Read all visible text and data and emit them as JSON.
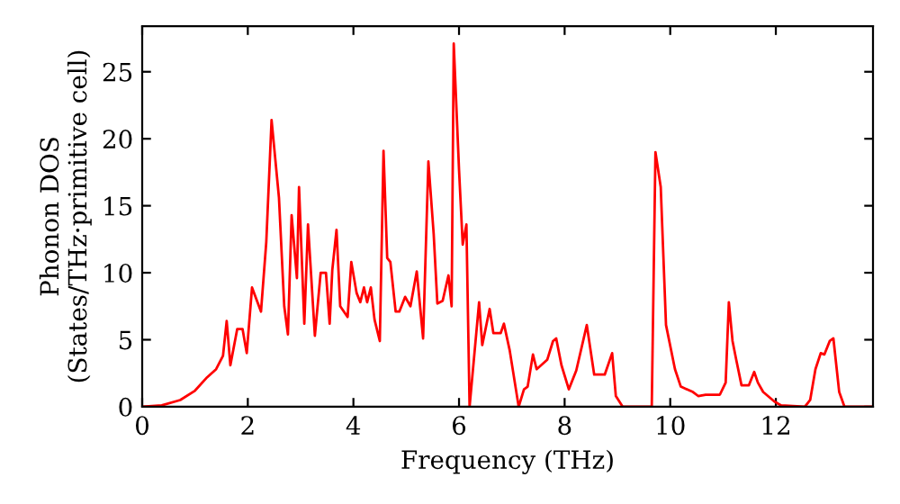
{
  "chart_data": {
    "type": "line",
    "xlabel": "Frequency (THz)",
    "ylabel": "Phonon DOS\n(States/THz·primitive cell)",
    "xlim": [
      0,
      13.84
    ],
    "ylim": [
      0,
      28.4
    ],
    "xticks": [
      0,
      2,
      4,
      6,
      8,
      10,
      12
    ],
    "yticks": [
      0,
      5,
      10,
      15,
      20,
      25
    ],
    "grid": false,
    "marker": "none",
    "line_style": "solid",
    "series": [
      {
        "color": "#ff0000",
        "x": [
          0,
          0.37,
          0.72,
          1.0,
          1.23,
          1.4,
          1.53,
          1.6,
          1.67,
          1.8,
          1.9,
          1.98,
          2.08,
          2.25,
          2.35,
          2.45,
          2.59,
          2.69,
          2.76,
          2.83,
          2.93,
          2.97,
          3.07,
          3.14,
          3.27,
          3.38,
          3.48,
          3.55,
          3.6,
          3.68,
          3.75,
          3.89,
          3.96,
          4.06,
          4.13,
          4.2,
          4.26,
          4.33,
          4.4,
          4.5,
          4.57,
          4.64,
          4.7,
          4.8,
          4.87,
          4.98,
          5.08,
          5.2,
          5.32,
          5.42,
          5.52,
          5.59,
          5.69,
          5.8,
          5.86,
          5.9,
          6.0,
          6.07,
          6.14,
          6.2,
          6.38,
          6.44,
          6.58,
          6.65,
          6.79,
          6.85,
          6.96,
          7.13,
          7.23,
          7.3,
          7.4,
          7.47,
          7.67,
          7.78,
          7.84,
          7.94,
          8.08,
          8.22,
          8.42,
          8.56,
          8.76,
          8.9,
          8.97,
          9.1,
          9.65,
          9.72,
          9.82,
          9.92,
          10.09,
          10.2,
          10.43,
          10.53,
          10.67,
          10.94,
          11.05,
          11.11,
          11.18,
          11.25,
          11.35,
          11.49,
          11.59,
          11.66,
          11.76,
          11.97,
          12.1,
          12.55,
          12.65,
          12.75,
          12.85,
          12.92,
          13.02,
          13.09,
          13.2,
          13.3,
          13.84
        ],
        "values": [
          0,
          0.1,
          0.5,
          1.2,
          2.2,
          2.8,
          3.8,
          6.4,
          3.1,
          5.8,
          5.8,
          4.0,
          8.9,
          7.1,
          12.3,
          21.4,
          15.6,
          7.5,
          5.4,
          14.3,
          9.6,
          16.4,
          6.2,
          13.6,
          5.3,
          10.0,
          10.0,
          6.2,
          10.2,
          13.2,
          7.5,
          6.7,
          10.8,
          8.5,
          7.8,
          8.9,
          7.8,
          8.9,
          6.5,
          4.9,
          19.1,
          11.1,
          10.8,
          7.1,
          7.1,
          8.2,
          7.5,
          10.1,
          5.1,
          18.3,
          12.9,
          7.7,
          7.9,
          9.8,
          7.5,
          27.1,
          17.7,
          12.1,
          13.6,
          0,
          7.8,
          4.6,
          7.3,
          5.5,
          5.5,
          6.2,
          4.2,
          0,
          1.3,
          1.5,
          3.9,
          2.8,
          3.5,
          4.9,
          5.1,
          3.1,
          1.3,
          2.7,
          6.1,
          2.4,
          2.4,
          4.0,
          0.8,
          0,
          0,
          19.0,
          16.4,
          6.1,
          2.8,
          1.5,
          1.1,
          0.8,
          0.9,
          0.9,
          1.8,
          7.8,
          4.9,
          3.5,
          1.6,
          1.6,
          2.6,
          1.8,
          1.1,
          0.4,
          0.1,
          0,
          0.5,
          2.8,
          4.0,
          3.9,
          4.9,
          5.1,
          1.1,
          0,
          0
        ]
      }
    ]
  }
}
